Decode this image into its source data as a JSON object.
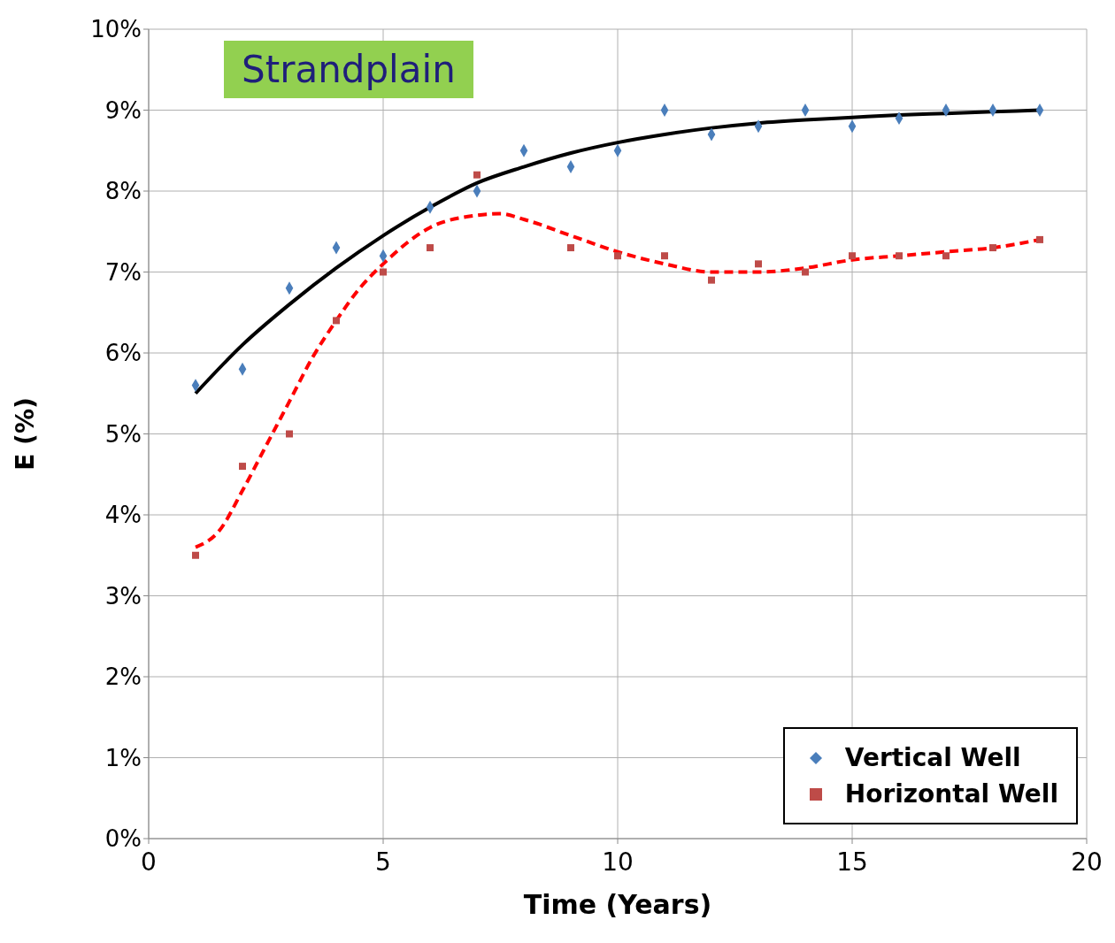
{
  "chart_data": {
    "type": "scatter",
    "title": "Strandplain",
    "xlabel": "Time (Years)",
    "ylabel": "E (%)",
    "xlim": [
      0,
      20
    ],
    "xticks": [
      0,
      5,
      10,
      15,
      20
    ],
    "ylim": [
      0,
      10
    ],
    "yticks": [
      {
        "value": 0,
        "label": "0%"
      },
      {
        "value": 1,
        "label": "1%"
      },
      {
        "value": 2,
        "label": "2%"
      },
      {
        "value": 3,
        "label": "3%"
      },
      {
        "value": 4,
        "label": "4%"
      },
      {
        "value": 5,
        "label": "5%"
      },
      {
        "value": 6,
        "label": "6%"
      },
      {
        "value": 7,
        "label": "7%"
      },
      {
        "value": 8,
        "label": "8%"
      },
      {
        "value": 9,
        "label": "9%"
      },
      {
        "value": 10,
        "label": "10%"
      }
    ],
    "grid": true,
    "legend": "bottom right",
    "series": [
      {
        "name": "Vertical Well",
        "marker": "diamond",
        "color": "#4a7ebb",
        "x": [
          1,
          2,
          3,
          4,
          5,
          6,
          7,
          8,
          9,
          10,
          11,
          12,
          13,
          14,
          15,
          16,
          17,
          18,
          19
        ],
        "values": [
          5.6,
          5.8,
          6.8,
          7.3,
          7.2,
          7.8,
          8.0,
          8.5,
          8.3,
          8.5,
          9.0,
          8.7,
          8.8,
          9.0,
          8.8,
          8.9,
          9.0,
          9.0,
          9.0
        ]
      },
      {
        "name": "Horizontal Well",
        "marker": "square",
        "color": "#be4b48",
        "x": [
          1,
          2,
          3,
          4,
          5,
          6,
          7,
          9,
          10,
          11,
          12,
          13,
          14,
          15,
          16,
          17,
          18,
          19
        ],
        "values": [
          3.5,
          4.6,
          5.0,
          6.4,
          7.0,
          7.3,
          8.2,
          7.3,
          7.2,
          7.2,
          6.9,
          7.1,
          7.0,
          7.2,
          7.2,
          7.2,
          7.3,
          7.4
        ]
      },
      {
        "type": "line",
        "marker": "none",
        "line_style": "solid",
        "color": "#000000",
        "x": [
          1,
          2,
          3,
          4,
          5,
          6,
          7,
          8,
          9,
          10,
          11,
          12,
          13,
          14,
          15,
          16,
          17,
          18,
          19
        ],
        "values": [
          5.5,
          6.1,
          6.6,
          7.05,
          7.45,
          7.8,
          8.1,
          8.3,
          8.47,
          8.6,
          8.7,
          8.78,
          8.84,
          8.88,
          8.91,
          8.94,
          8.96,
          8.98,
          9.0
        ]
      },
      {
        "type": "line",
        "marker": "none",
        "line_style": "dashed",
        "color": "#ff0000",
        "x": [
          1,
          1.5,
          2,
          2.5,
          3,
          3.5,
          4,
          4.5,
          5,
          6,
          7,
          7.5,
          8,
          9,
          10,
          11,
          12,
          13,
          14,
          15,
          16,
          17,
          18,
          19
        ],
        "values": [
          3.6,
          3.8,
          4.3,
          4.85,
          5.4,
          5.95,
          6.4,
          6.8,
          7.1,
          7.55,
          7.7,
          7.72,
          7.65,
          7.45,
          7.25,
          7.1,
          7.0,
          7.0,
          7.05,
          7.15,
          7.2,
          7.25,
          7.3,
          7.4
        ]
      }
    ]
  }
}
